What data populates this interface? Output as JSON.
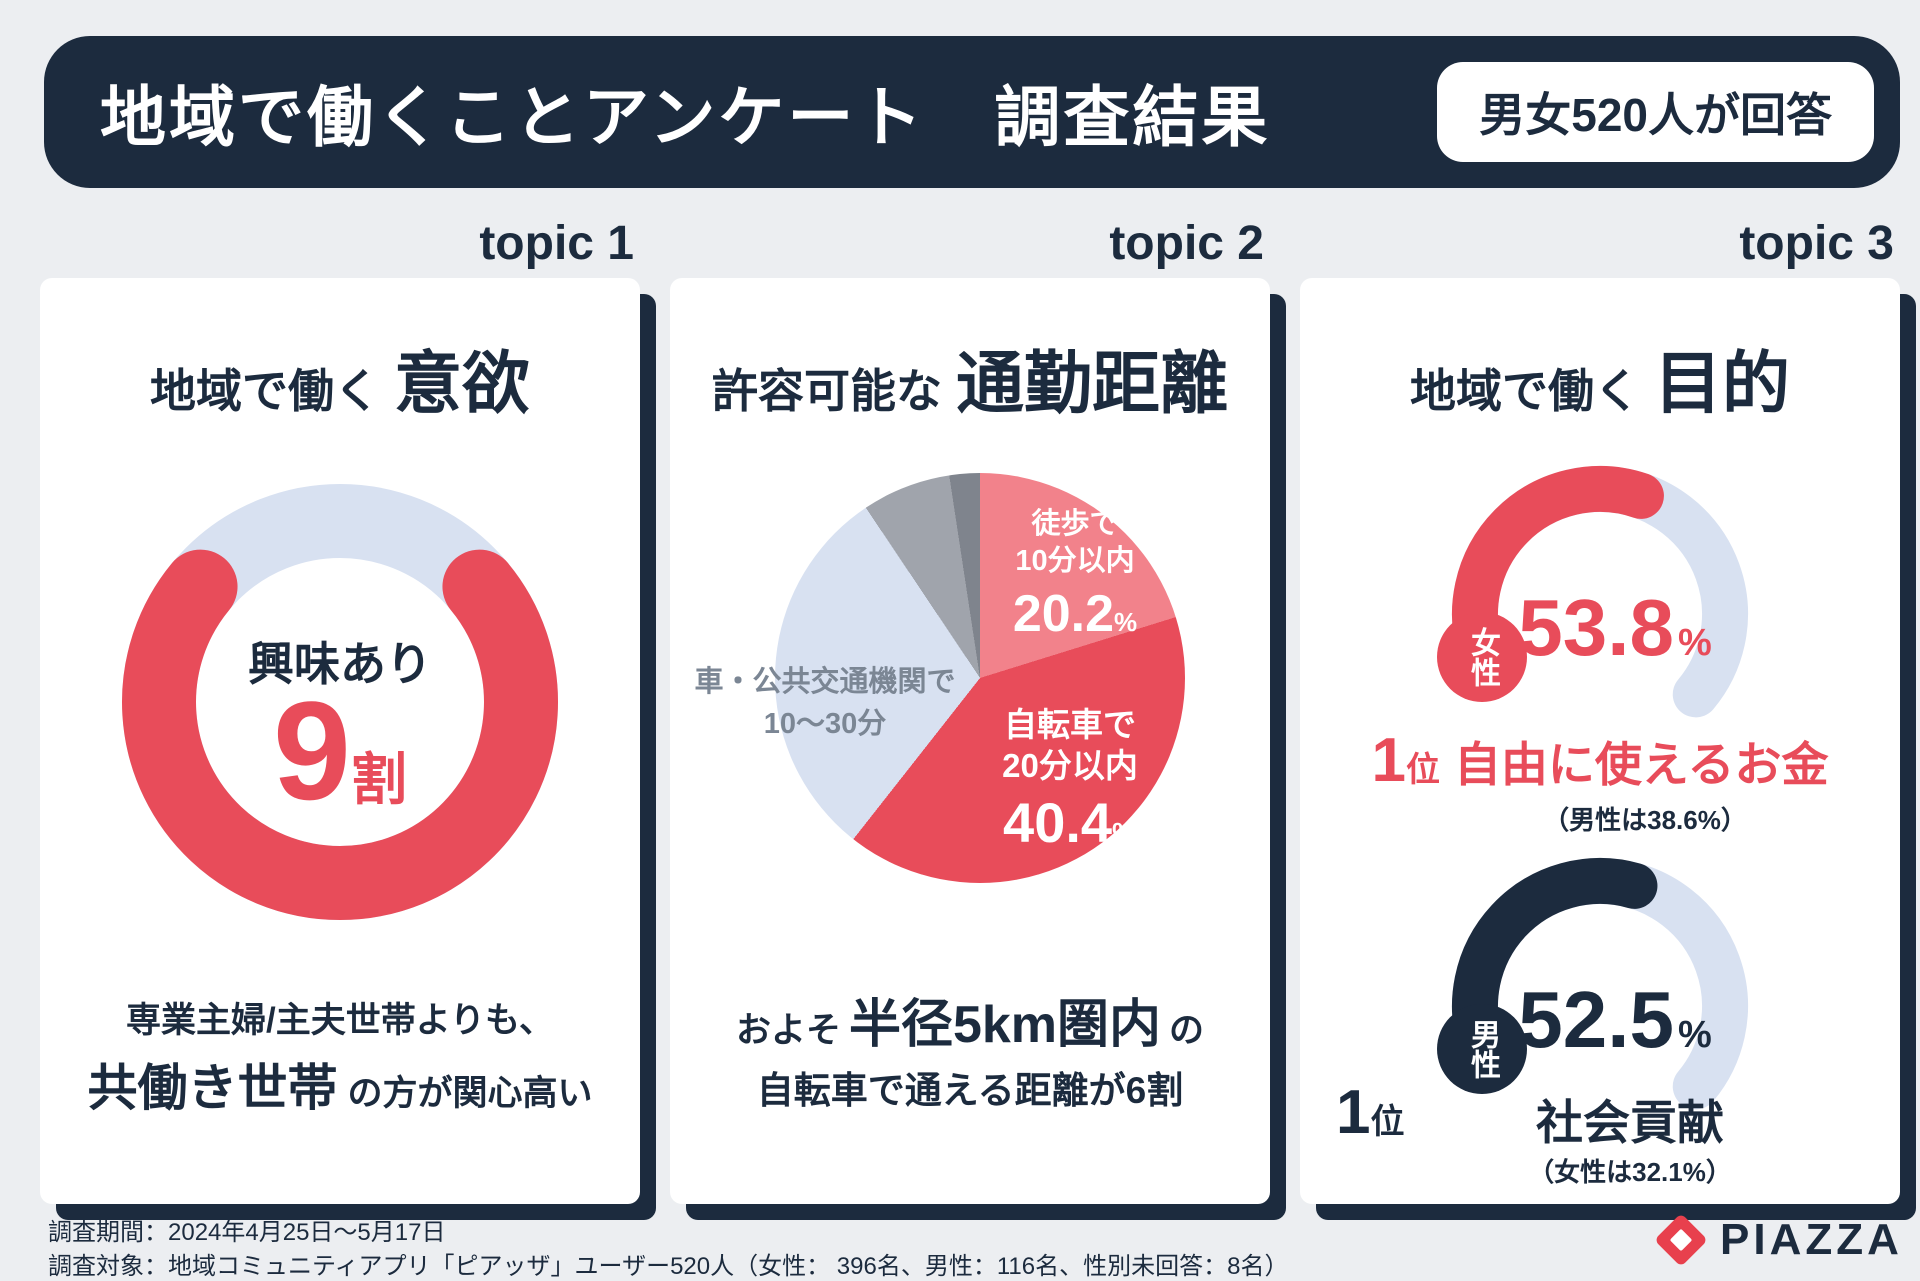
{
  "symbols": {
    "percent": "%"
  },
  "header": {
    "title": "地域で働くことアンケート　調査結果",
    "badge": "男女520人が回答"
  },
  "topics": {
    "t1": "topic 1",
    "t2": "topic 2",
    "t3": "topic 3"
  },
  "card1": {
    "title_lead": "地域で働く",
    "title_main": "意欲",
    "donut_center_label": "興味あり",
    "donut_value": "9",
    "donut_unit": "割",
    "note_line1": "専業主婦/主夫世帯よりも、",
    "note_emphasis": "共働き世帯",
    "note_tail": "の方が関心高い"
  },
  "card2": {
    "title_lead": "許容可能な",
    "title_main": "通勤距離",
    "walk_line1": "徒歩で",
    "walk_line2": "10分以内",
    "walk_value": "20.2",
    "bike_line1": "自転車で",
    "bike_line2": "20分以内",
    "bike_value": "40.4",
    "car_line1": "車・公共交通機関で",
    "car_line2": "10〜30分",
    "note_lead": "およそ",
    "note_emphasis": "半径5km圏内",
    "note_mid": "の",
    "note_line2": "自転車で通える距離が6割"
  },
  "card3": {
    "title_lead": "地域で働く",
    "title_main": "目的",
    "female": {
      "badge": "女性",
      "value": "53.8",
      "rank_num": "1",
      "rank_unit": "位",
      "answer": "自由に使えるお金",
      "note": "（男性は38.6%）"
    },
    "male": {
      "badge": "男性",
      "value": "52.5",
      "rank_num": "1",
      "rank_unit": "位",
      "answer": "社会貢献",
      "note": "（女性は32.1%）"
    }
  },
  "footer": {
    "line1": "調査期間：2024年4月25日〜5月17日",
    "line2": "調査対象：地域コミュニティアプリ「ピアッザ」ユーザー520人（女性： 396名、男性：116名、性別未回答：8名）",
    "logo_text": "PIAZZA"
  },
  "colors": {
    "navy": "#1c2b3e",
    "red": "#e84c5a",
    "pink": "#f2828b",
    "track_blue": "#d8e1f1",
    "gray": "#a0a4ac",
    "dark_gray": "#7f848d",
    "background": "#eceef1",
    "logo_red": "#e8404d"
  },
  "chart_data": [
    {
      "type": "donut",
      "title": "地域で働く意欲",
      "center_label": "興味あり",
      "value_text": "9割",
      "value_percent": 90,
      "color": "#e84c5a",
      "track_color": "#d8e1f1",
      "visual_fraction": 0.72,
      "note": "専業主婦/主夫世帯よりも、共働き世帯の方が関心高い"
    },
    {
      "type": "pie",
      "title": "許容可能な通勤距離",
      "categories": [
        "徒歩で10分以内",
        "自転車で20分以内",
        "車・公共交通機関で10〜30分",
        "",
        ""
      ],
      "values": [
        20.2,
        40.4,
        30.0,
        7.0,
        2.4
      ],
      "colors": [
        "#f2828b",
        "#e84c5a",
        "#d8e1f1",
        "#a0a4ac",
        "#7f848d"
      ],
      "start_angle_deg": 0,
      "note": "およそ半径5km圏内の自転車で通える距離が6割"
    },
    {
      "type": "gauge",
      "title": "地域で働く目的",
      "max": 100,
      "series": [
        {
          "name": "女性",
          "value": 53.8,
          "color": "#e84c5a",
          "track_color": "#d8e1f1",
          "rank": 1,
          "top_answer": "自由に使えるお金",
          "other_group": "男性は38.6%"
        },
        {
          "name": "男性",
          "value": 52.5,
          "color": "#1c2b3e",
          "track_color": "#d8e1f1",
          "rank": 1,
          "top_answer": "社会貢献",
          "other_group": "女性は32.1%"
        }
      ]
    }
  ]
}
